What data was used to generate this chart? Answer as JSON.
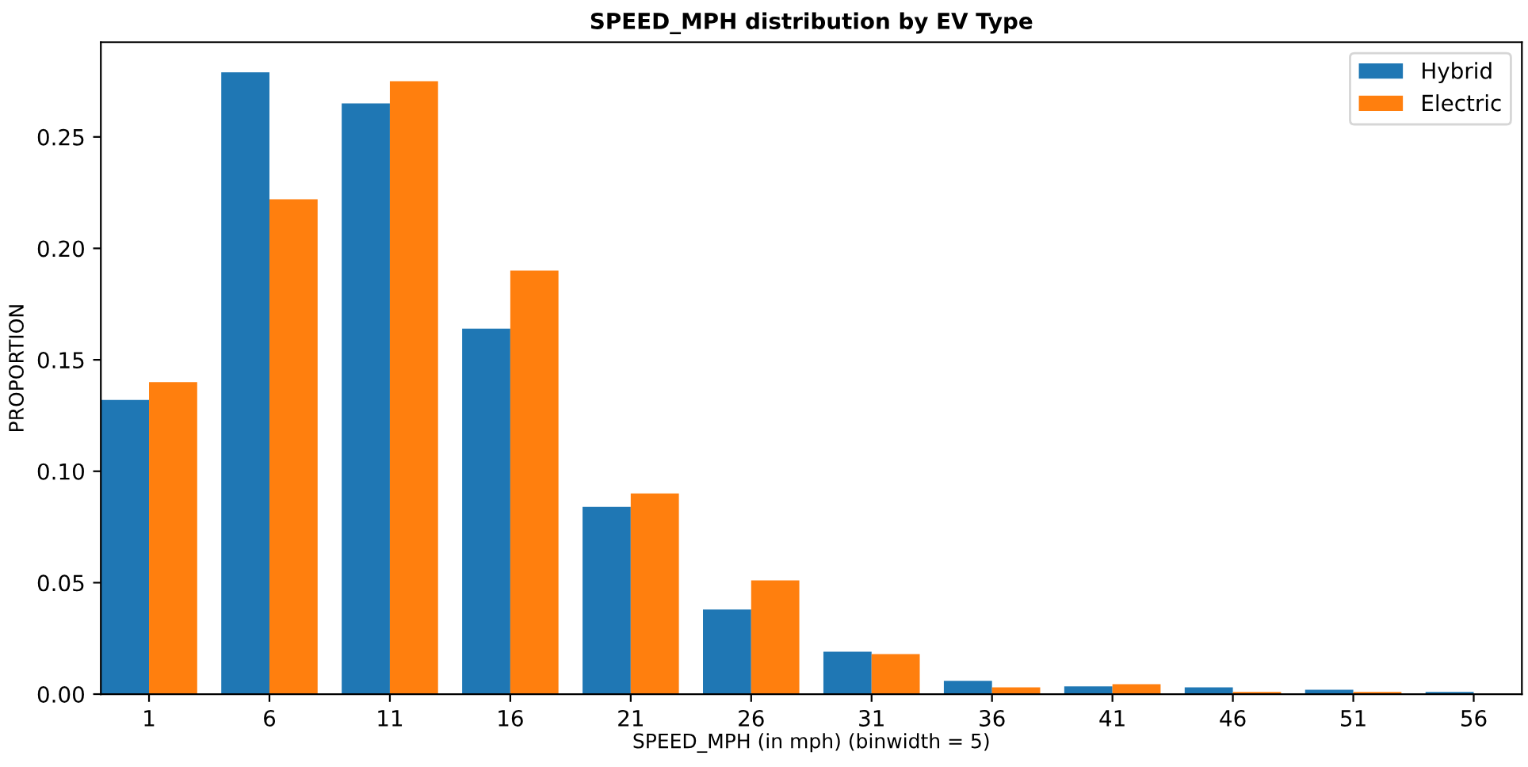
{
  "chart_data": {
    "type": "bar",
    "title": "SPEED_MPH distribution by EV Type",
    "xlabel": "SPEED_MPH (in mph) (binwidth = 5)",
    "ylabel": "PROPORTION",
    "categories": [
      "1",
      "6",
      "11",
      "16",
      "21",
      "26",
      "31",
      "36",
      "41",
      "46",
      "51",
      "56"
    ],
    "series": [
      {
        "name": "Hybrid",
        "color": "#1f77b4",
        "values": [
          0.132,
          0.279,
          0.265,
          0.164,
          0.084,
          0.038,
          0.019,
          0.006,
          0.0035,
          0.003,
          0.002,
          0.001
        ]
      },
      {
        "name": "Electric",
        "color": "#ff7f0e",
        "values": [
          0.14,
          0.222,
          0.275,
          0.19,
          0.09,
          0.051,
          0.018,
          0.003,
          0.0045,
          0.001,
          0.001,
          null
        ]
      }
    ],
    "ylim": [
      0,
      0.2925
    ],
    "yticks": [
      {
        "value": 0,
        "label": "0.00"
      },
      {
        "value": 0.05,
        "label": "0.05"
      },
      {
        "value": 0.1,
        "label": "0.10"
      },
      {
        "value": 0.15,
        "label": "0.15"
      },
      {
        "value": 0.2,
        "label": "0.20"
      },
      {
        "value": 0.25,
        "label": "0.25"
      }
    ],
    "grid": false,
    "legend": "top right"
  }
}
